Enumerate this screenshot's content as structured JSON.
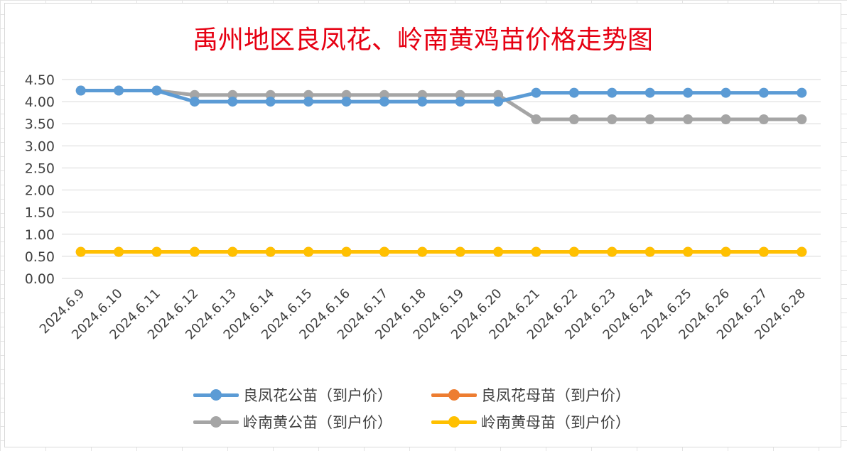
{
  "chart_data": {
    "type": "line",
    "title": "禹州地区良凤花、岭南黄鸡苗价格走势图",
    "xlabel": "",
    "ylabel": "",
    "ylim": [
      0,
      4.5
    ],
    "y_ticks": [
      "0.00",
      "0.50",
      "1.00",
      "1.50",
      "2.00",
      "2.50",
      "3.00",
      "3.50",
      "4.00",
      "4.50"
    ],
    "grid": true,
    "legend_position": "bottom",
    "categories": [
      "2024.6.9",
      "2024.6.10",
      "2024.6.11",
      "2024.6.12",
      "2024.6.13",
      "2024.6.14",
      "2024.6.15",
      "2024.6.16",
      "2024.6.17",
      "2024.6.18",
      "2024.6.19",
      "2024.6.20",
      "2024.6.21",
      "2024.6.22",
      "2024.6.23",
      "2024.6.24",
      "2024.6.25",
      "2024.6.26",
      "2024.6.27",
      "2024.6.28"
    ],
    "series": [
      {
        "name": "良凤花公苗（到户价）",
        "color": "#5b9bd5",
        "values": [
          4.25,
          4.25,
          4.25,
          4.0,
          4.0,
          4.0,
          4.0,
          4.0,
          4.0,
          4.0,
          4.0,
          4.0,
          4.2,
          4.2,
          4.2,
          4.2,
          4.2,
          4.2,
          4.2,
          4.2
        ]
      },
      {
        "name": "良凤花母苗（到户价）",
        "color": "#ed7d31",
        "values": [
          0.6,
          0.6,
          0.6,
          0.6,
          0.6,
          0.6,
          0.6,
          0.6,
          0.6,
          0.6,
          0.6,
          0.6,
          0.6,
          0.6,
          0.6,
          0.6,
          0.6,
          0.6,
          0.6,
          0.6
        ]
      },
      {
        "name": "岭南黄公苗（到户价）",
        "color": "#a5a5a5",
        "values": [
          4.25,
          4.25,
          4.25,
          4.15,
          4.15,
          4.15,
          4.15,
          4.15,
          4.15,
          4.15,
          4.15,
          4.15,
          3.6,
          3.6,
          3.6,
          3.6,
          3.6,
          3.6,
          3.6,
          3.6
        ]
      },
      {
        "name": "岭南黄母苗（到户价）",
        "color": "#ffc000",
        "values": [
          0.6,
          0.6,
          0.6,
          0.6,
          0.6,
          0.6,
          0.6,
          0.6,
          0.6,
          0.6,
          0.6,
          0.6,
          0.6,
          0.6,
          0.6,
          0.6,
          0.6,
          0.6,
          0.6,
          0.6
        ]
      }
    ]
  }
}
